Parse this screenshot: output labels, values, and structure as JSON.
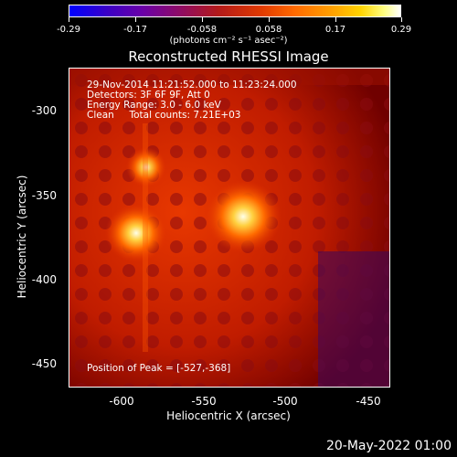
{
  "colorbar": {
    "ticks": [
      "-0.29",
      "-0.17",
      "-0.058",
      "0.058",
      "0.17",
      "0.29"
    ],
    "units": "(photons cm⁻² s⁻¹ asec⁻²)"
  },
  "title": "Reconstructed RHESSI Image",
  "annotations": {
    "line1": "29-Nov-2014 11:21:52.000 to 11:23:24.000",
    "line2": "Detectors: 3F 6F 9F, Att 0",
    "line3": "Energy Range: 3.0 - 6.0 keV",
    "line4": "Clean     Total counts: 7.21E+03",
    "peak": "Position of Peak = [-527,-368]"
  },
  "axes": {
    "xlabel": "Heliocentric X (arcsec)",
    "ylabel": "Heliocentric Y (arcsec)",
    "xticks": [
      "-600",
      "-550",
      "-500",
      "-450"
    ],
    "yticks": [
      "-300",
      "-350",
      "-400",
      "-450"
    ]
  },
  "footer_date": "20-May-2022 01:00",
  "colors": {
    "background": "#000000",
    "image_base": "#c01a00",
    "peak": "#ffffe0"
  }
}
